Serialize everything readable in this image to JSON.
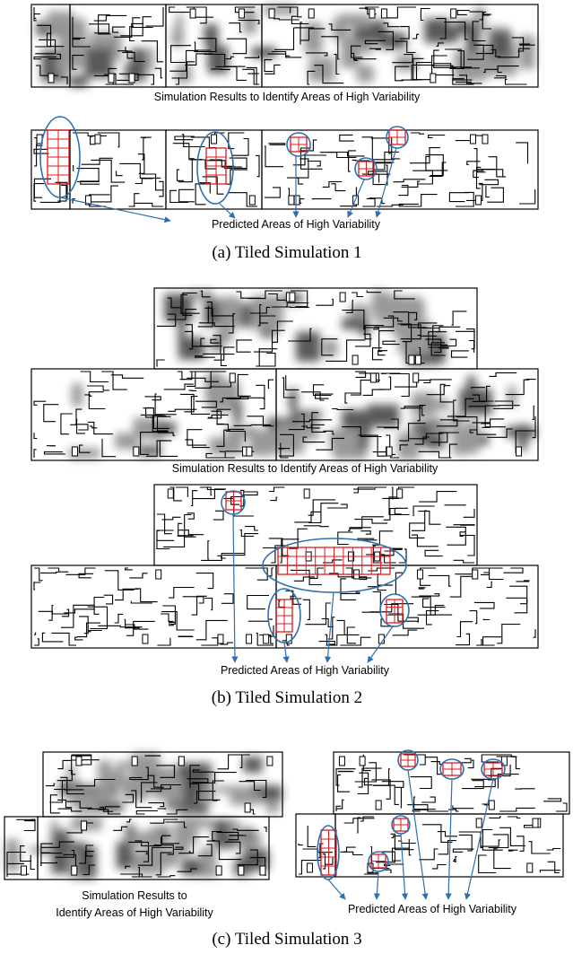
{
  "panels": [
    {
      "results_label": "Simulation Results to Identify Areas of High Variability",
      "predicted_label": "Predicted Areas of High Variability",
      "caption": "(a) Tiled Simulation 1"
    },
    {
      "results_label": "Simulation Results to Identify Areas of High Variability",
      "predicted_label": "Predicted Areas of High Variability",
      "caption": "(b) Tiled Simulation 2"
    },
    {
      "results_label_lines": [
        "Simulation Results to",
        "Identify Areas of High Variability"
      ],
      "predicted_label": "Predicted Areas of High Variability",
      "caption": "(c) Tiled Simulation 3"
    }
  ]
}
